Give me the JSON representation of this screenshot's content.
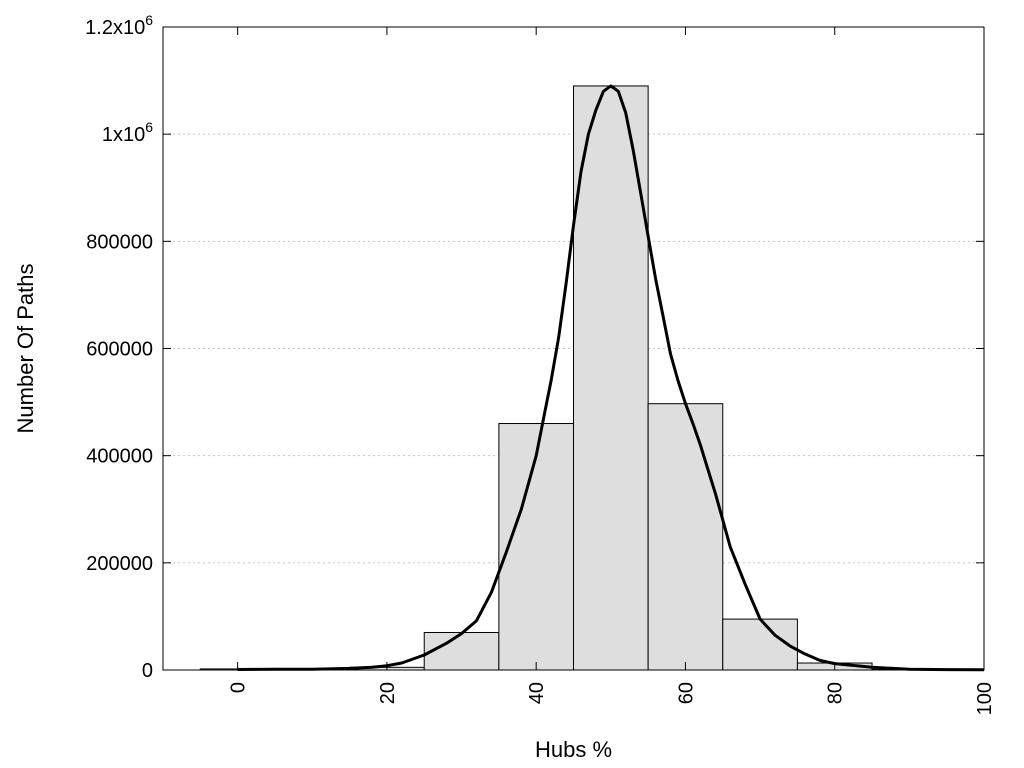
{
  "chart_data": {
    "type": "bar",
    "xlabel": "Hubs %",
    "ylabel": "Number Of Paths",
    "xlim": [
      -10,
      100
    ],
    "ylim": [
      0,
      1200000
    ],
    "x_ticks": [
      {
        "value": 0,
        "label": "0"
      },
      {
        "value": 20,
        "label": "20"
      },
      {
        "value": 40,
        "label": "40"
      },
      {
        "value": 60,
        "label": "60"
      },
      {
        "value": 80,
        "label": "80"
      },
      {
        "value": 100,
        "label": "100"
      }
    ],
    "y_ticks": [
      {
        "value": 0,
        "label": "0"
      },
      {
        "value": 200000,
        "label": "200000"
      },
      {
        "value": 400000,
        "label": "400000"
      },
      {
        "value": 600000,
        "label": "600000"
      },
      {
        "value": 800000,
        "label": "800000"
      },
      {
        "value": 1000000,
        "label": "1x10",
        "sup": "6"
      },
      {
        "value": 1200000,
        "label": "1.2x10",
        "sup": "6"
      }
    ],
    "grid": "horizontal dotted",
    "bars": [
      {
        "x0": -5,
        "x1": 5,
        "value": 2000
      },
      {
        "x0": 5,
        "x1": 15,
        "value": 2000
      },
      {
        "x0": 15,
        "x1": 25,
        "value": 5000
      },
      {
        "x0": 25,
        "x1": 35,
        "value": 70000
      },
      {
        "x0": 35,
        "x1": 45,
        "value": 460000
      },
      {
        "x0": 45,
        "x1": 55,
        "value": 1090000
      },
      {
        "x0": 55,
        "x1": 65,
        "value": 497000
      },
      {
        "x0": 65,
        "x1": 75,
        "value": 95000
      },
      {
        "x0": 75,
        "x1": 85,
        "value": 13000
      },
      {
        "x0": 85,
        "x1": 95,
        "value": 1000
      },
      {
        "x0": 95,
        "x1": 105,
        "value": 500
      }
    ],
    "curve": {
      "x": [
        0,
        5,
        10,
        15,
        18,
        20,
        22,
        25,
        28,
        30,
        32,
        34,
        36,
        38,
        40,
        41,
        42,
        43,
        44,
        45,
        46,
        47,
        48,
        49,
        50,
        51,
        52,
        53,
        54,
        55,
        56,
        57,
        58,
        59,
        60,
        61,
        62,
        63,
        64,
        65,
        66,
        68,
        70,
        72,
        74,
        76,
        78,
        80,
        85,
        90,
        95,
        100
      ],
      "y": [
        1000,
        1500,
        1500,
        3000,
        5000,
        8000,
        13000,
        28000,
        50000,
        68000,
        92000,
        145000,
        220000,
        300000,
        400000,
        470000,
        540000,
        620000,
        720000,
        830000,
        930000,
        1000000,
        1045000,
        1080000,
        1090000,
        1080000,
        1040000,
        970000,
        890000,
        810000,
        730000,
        660000,
        590000,
        540000,
        497000,
        460000,
        420000,
        375000,
        330000,
        280000,
        230000,
        160000,
        95000,
        65000,
        45000,
        30000,
        18000,
        12000,
        5000,
        1500,
        800,
        500
      ]
    }
  }
}
